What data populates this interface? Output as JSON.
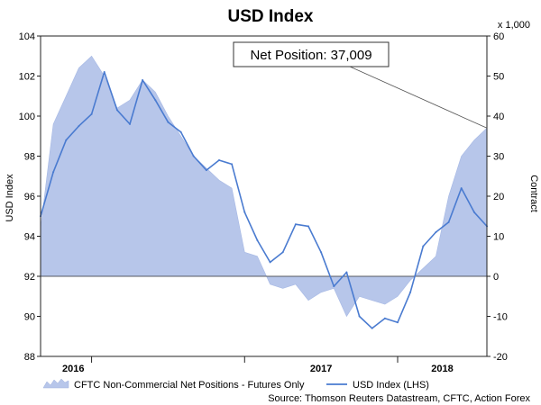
{
  "chart_data": {
    "type": "area+line",
    "title": "USD Index",
    "left_axis": {
      "label": "USD Index",
      "range": [
        88,
        104
      ],
      "ticks": [
        88,
        90,
        92,
        94,
        96,
        98,
        100,
        102,
        104
      ]
    },
    "right_axis": {
      "label": "Contract",
      "multiplier_label": "x 1,000",
      "range": [
        -20,
        60
      ],
      "ticks": [
        -20,
        -10,
        0,
        10,
        20,
        30,
        40,
        50,
        60
      ]
    },
    "x_axis": {
      "ticks": [
        "2016",
        "2017",
        "2018"
      ],
      "range": [
        "2015-09",
        "2018-08"
      ]
    },
    "annotation": {
      "text": "Net Position: 37,009"
    },
    "series": [
      {
        "name": "CFTC Non-Commercial Net Positions - Futures Only",
        "kind": "area",
        "axis": "right",
        "points": [
          [
            "2015-09",
            12
          ],
          [
            "2015-10",
            38
          ],
          [
            "2015-11",
            45
          ],
          [
            "2015-12",
            52
          ],
          [
            "2016-01",
            55
          ],
          [
            "2016-02",
            50
          ],
          [
            "2016-03",
            42
          ],
          [
            "2016-04",
            44
          ],
          [
            "2016-05",
            49
          ],
          [
            "2016-06",
            46
          ],
          [
            "2016-07",
            40
          ],
          [
            "2016-08",
            35
          ],
          [
            "2016-09",
            30
          ],
          [
            "2016-10",
            27
          ],
          [
            "2016-11",
            24
          ],
          [
            "2016-12",
            22
          ],
          [
            "2017-01",
            6
          ],
          [
            "2017-02",
            5
          ],
          [
            "2017-03",
            -2
          ],
          [
            "2017-04",
            -3
          ],
          [
            "2017-05",
            -2
          ],
          [
            "2017-06",
            -6
          ],
          [
            "2017-07",
            -4
          ],
          [
            "2017-08",
            -3
          ],
          [
            "2017-09",
            -10
          ],
          [
            "2017-10",
            -5
          ],
          [
            "2017-11",
            -6
          ],
          [
            "2017-12",
            -7
          ],
          [
            "2018-01",
            -5
          ],
          [
            "2018-02",
            -1
          ],
          [
            "2018-03",
            2
          ],
          [
            "2018-04",
            5
          ],
          [
            "2018-05",
            20
          ],
          [
            "2018-06",
            30
          ],
          [
            "2018-07",
            34
          ],
          [
            "2018-08",
            37
          ]
        ]
      },
      {
        "name": "USD Index (LHS)",
        "kind": "line",
        "axis": "left",
        "color": "#4a7bd0",
        "points": [
          [
            "2015-09",
            95.0
          ],
          [
            "2015-10",
            97.2
          ],
          [
            "2015-11",
            98.8
          ],
          [
            "2015-12",
            99.5
          ],
          [
            "2016-01",
            100.1
          ],
          [
            "2016-02",
            102.2
          ],
          [
            "2016-03",
            100.3
          ],
          [
            "2016-04",
            99.6
          ],
          [
            "2016-05",
            101.8
          ],
          [
            "2016-06",
            100.8
          ],
          [
            "2016-07",
            99.7
          ],
          [
            "2016-08",
            99.2
          ],
          [
            "2016-09",
            98.0
          ],
          [
            "2016-10",
            97.3
          ],
          [
            "2016-11",
            97.8
          ],
          [
            "2016-12",
            97.6
          ],
          [
            "2017-01",
            95.2
          ],
          [
            "2017-02",
            93.8
          ],
          [
            "2017-03",
            92.7
          ],
          [
            "2017-04",
            93.2
          ],
          [
            "2017-05",
            94.6
          ],
          [
            "2017-06",
            94.5
          ],
          [
            "2017-07",
            93.2
          ],
          [
            "2017-08",
            91.5
          ],
          [
            "2017-09",
            92.2
          ],
          [
            "2017-10",
            90.0
          ],
          [
            "2017-11",
            89.4
          ],
          [
            "2017-12",
            89.9
          ],
          [
            "2018-01",
            89.7
          ],
          [
            "2018-02",
            91.2
          ],
          [
            "2018-03",
            93.5
          ],
          [
            "2018-04",
            94.2
          ],
          [
            "2018-05",
            94.7
          ],
          [
            "2018-06",
            96.4
          ],
          [
            "2018-07",
            95.2
          ],
          [
            "2018-08",
            94.5
          ]
        ]
      }
    ],
    "legend_placement": "bottom",
    "grid": false,
    "source": "Source: Thomson Reuters Datastream, CFTC, Action Forex"
  }
}
